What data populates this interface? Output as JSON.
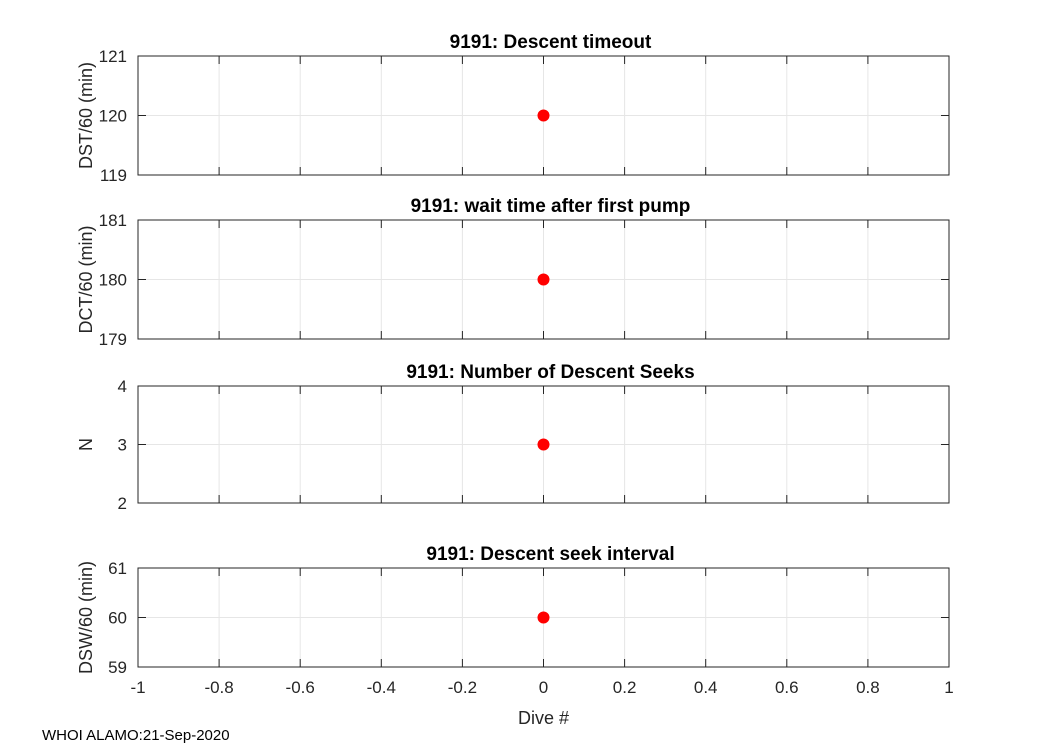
{
  "footer_text": "WHOI ALAMO:21-Sep-2020",
  "colors": {
    "marker": "#ff0000",
    "grid": "#e6e6e6",
    "axis": "#262626"
  },
  "chart_data": [
    {
      "type": "scatter",
      "title": "9191: Descent timeout",
      "ylabel": "DST/60 (min)",
      "xlabel": "",
      "xlim": [
        -1,
        1
      ],
      "ylim": [
        119,
        121
      ],
      "xticks": [
        "-1",
        "-0.8",
        "-0.6",
        "-0.4",
        "-0.2",
        "0",
        "0.2",
        "0.4",
        "0.6",
        "0.8",
        "1"
      ],
      "yticks": [
        "119",
        "120",
        "121"
      ],
      "show_xtick_labels": false,
      "grid": true,
      "points": [
        {
          "x": 0,
          "y": 120
        }
      ]
    },
    {
      "type": "scatter",
      "title": "9191: wait time after first pump",
      "ylabel": "DCT/60 (min)",
      "xlabel": "",
      "xlim": [
        -1,
        1
      ],
      "ylim": [
        179,
        181
      ],
      "xticks": [
        "-1",
        "-0.8",
        "-0.6",
        "-0.4",
        "-0.2",
        "0",
        "0.2",
        "0.4",
        "0.6",
        "0.8",
        "1"
      ],
      "yticks": [
        "179",
        "180",
        "181"
      ],
      "show_xtick_labels": false,
      "grid": true,
      "points": [
        {
          "x": 0,
          "y": 180
        }
      ]
    },
    {
      "type": "scatter",
      "title": "9191: Number of Descent Seeks",
      "ylabel": "N",
      "xlabel": "",
      "xlim": [
        -1,
        1
      ],
      "ylim": [
        2,
        4
      ],
      "xticks": [
        "-1",
        "-0.8",
        "-0.6",
        "-0.4",
        "-0.2",
        "0",
        "0.2",
        "0.4",
        "0.6",
        "0.8",
        "1"
      ],
      "yticks": [
        "2",
        "3",
        "4"
      ],
      "show_xtick_labels": false,
      "grid": true,
      "points": [
        {
          "x": 0,
          "y": 3
        }
      ]
    },
    {
      "type": "scatter",
      "title": "9191: Descent seek interval",
      "ylabel": "DSW/60 (min)",
      "xlabel": "Dive #",
      "xlim": [
        -1,
        1
      ],
      "ylim": [
        59,
        61
      ],
      "xticks": [
        "-1",
        "-0.8",
        "-0.6",
        "-0.4",
        "-0.2",
        "0",
        "0.2",
        "0.4",
        "0.6",
        "0.8",
        "1"
      ],
      "yticks": [
        "59",
        "60",
        "61"
      ],
      "show_xtick_labels": true,
      "grid": true,
      "points": [
        {
          "x": 0,
          "y": 60
        }
      ]
    }
  ]
}
